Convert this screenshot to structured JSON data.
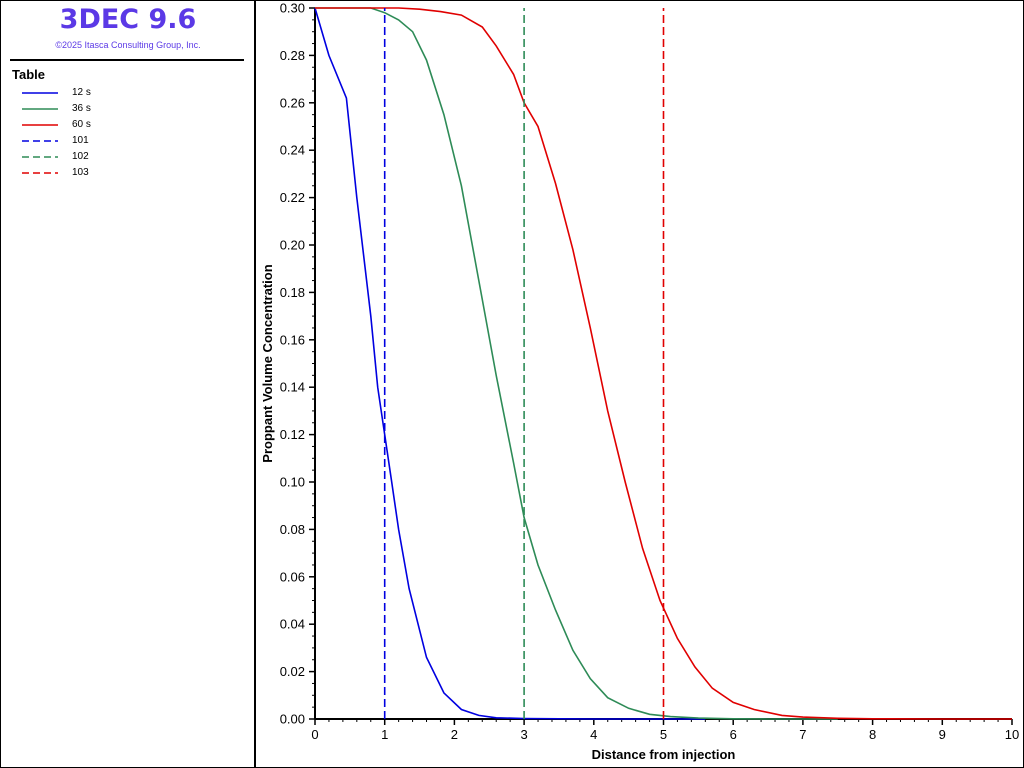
{
  "app": {
    "title": "3DEC 9.6",
    "copyright": "©2025 Itasca Consulting Group, Inc.",
    "title_color": "#5b39e6"
  },
  "legend": {
    "heading": "Table",
    "items": [
      {
        "label": "12 s",
        "color": "#0000e0",
        "style": "solid"
      },
      {
        "label": "36 s",
        "color": "#2e8b57",
        "style": "solid"
      },
      {
        "label": "60 s",
        "color": "#e00000",
        "style": "solid"
      },
      {
        "label": "101",
        "color": "#0000e0",
        "style": "dashed"
      },
      {
        "label": "102",
        "color": "#2e8b57",
        "style": "dashed"
      },
      {
        "label": "103",
        "color": "#e00000",
        "style": "dashed"
      }
    ]
  },
  "chart_data": {
    "type": "line",
    "title": "",
    "xlabel": "Distance from injection",
    "ylabel": "Proppant Volume Concentration",
    "xlim": [
      0,
      10
    ],
    "ylim": [
      0,
      0.3
    ],
    "x_ticks": [
      0,
      1,
      2,
      3,
      4,
      5,
      6,
      7,
      8,
      9,
      10
    ],
    "y_ticks": [
      "0.00",
      "0.02",
      "0.04",
      "0.06",
      "0.08",
      "0.10",
      "0.12",
      "0.14",
      "0.16",
      "0.18",
      "0.20",
      "0.22",
      "0.24",
      "0.26",
      "0.28",
      "0.30"
    ],
    "grid": false,
    "series": [
      {
        "name": "12 s",
        "color": "#0000e0",
        "style": "solid",
        "x": [
          0,
          0.2,
          0.45,
          0.6,
          0.8,
          0.9,
          1.0,
          1.1,
          1.2,
          1.35,
          1.6,
          1.85,
          2.1,
          2.35,
          2.6,
          3.0,
          4.0,
          5.0,
          5.6
        ],
        "y": [
          0.3,
          0.28,
          0.262,
          0.22,
          0.17,
          0.14,
          0.12,
          0.1,
          0.08,
          0.055,
          0.026,
          0.011,
          0.004,
          0.0015,
          0.0005,
          0.0002,
          0.0,
          0.0,
          0.0
        ]
      },
      {
        "name": "36 s",
        "color": "#2e8b57",
        "style": "solid",
        "x": [
          0,
          0.8,
          1.0,
          1.2,
          1.4,
          1.6,
          1.85,
          2.1,
          2.35,
          2.6,
          2.85,
          3.0,
          3.2,
          3.45,
          3.7,
          3.95,
          4.2,
          4.5,
          4.8,
          5.1,
          5.5,
          6.0,
          6.5,
          7.0,
          7.5
        ],
        "y": [
          0.3,
          0.3,
          0.298,
          0.295,
          0.29,
          0.278,
          0.255,
          0.225,
          0.185,
          0.145,
          0.108,
          0.085,
          0.065,
          0.046,
          0.029,
          0.017,
          0.009,
          0.0045,
          0.002,
          0.001,
          0.0004,
          0.0001,
          0.0,
          0.0,
          0.0
        ]
      },
      {
        "name": "60 s",
        "color": "#e00000",
        "style": "solid",
        "x": [
          0,
          1.2,
          1.5,
          1.8,
          2.1,
          2.4,
          2.6,
          2.85,
          3.0,
          3.2,
          3.45,
          3.7,
          3.95,
          4.2,
          4.45,
          4.7,
          4.95,
          5.2,
          5.45,
          5.7,
          6.0,
          6.3,
          6.7,
          7.0,
          7.5,
          8.0,
          9.0,
          10.0
        ],
        "y": [
          0.3,
          0.3,
          0.2995,
          0.2985,
          0.297,
          0.292,
          0.284,
          0.272,
          0.26,
          0.25,
          0.226,
          0.198,
          0.165,
          0.13,
          0.1,
          0.072,
          0.05,
          0.034,
          0.022,
          0.013,
          0.007,
          0.004,
          0.0015,
          0.0008,
          0.0003,
          0.0001,
          0.0,
          0.0
        ]
      },
      {
        "name": "101",
        "color": "#0000e0",
        "style": "dashed",
        "x": [
          1,
          1
        ],
        "y": [
          0,
          0.3
        ]
      },
      {
        "name": "102",
        "color": "#2e8b57",
        "style": "dashed",
        "x": [
          3,
          3
        ],
        "y": [
          0,
          0.3
        ]
      },
      {
        "name": "103",
        "color": "#e00000",
        "style": "dashed",
        "x": [
          5,
          5
        ],
        "y": [
          0,
          0.3
        ]
      }
    ]
  }
}
